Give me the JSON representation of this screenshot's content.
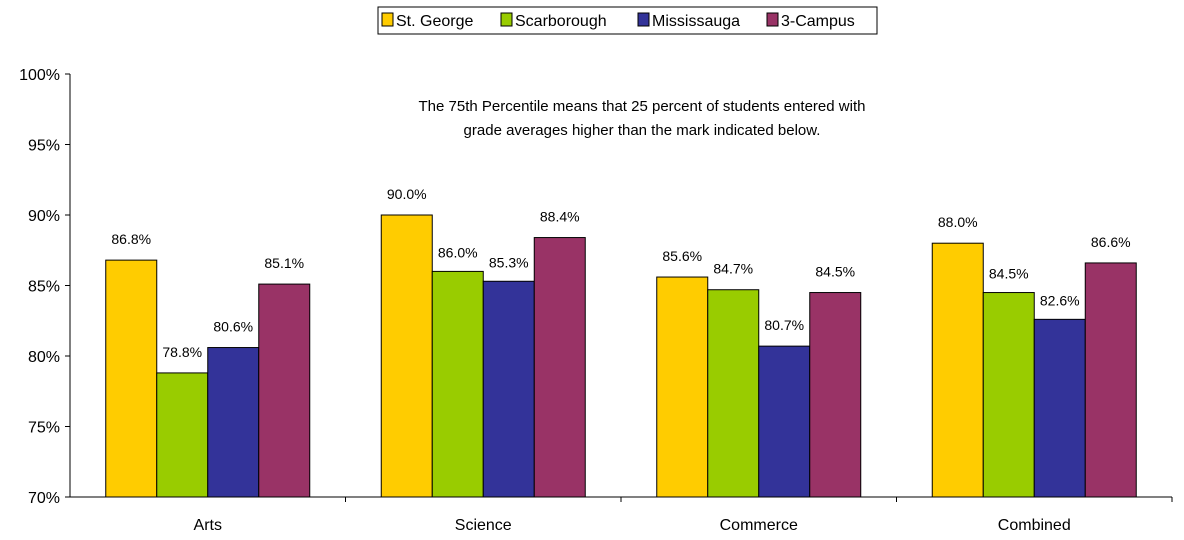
{
  "chart_data": {
    "type": "bar",
    "title": "",
    "xlabel": "",
    "ylabel": "",
    "ylim": [
      70,
      100
    ],
    "yticks": [
      "70%",
      "75%",
      "80%",
      "85%",
      "90%",
      "95%",
      "100%"
    ],
    "categories": [
      "Arts",
      "Science",
      "Commerce",
      "Combined"
    ],
    "series": [
      {
        "name": "St. George",
        "color": "#ffcc00",
        "values": [
          86.8,
          90.0,
          85.6,
          88.0
        ],
        "labels": [
          "86.8%",
          "90.0%",
          "85.6%",
          "88.0%"
        ]
      },
      {
        "name": "Scarborough",
        "color": "#99cc00",
        "values": [
          78.8,
          86.0,
          84.7,
          84.5
        ],
        "labels": [
          "78.8%",
          "86.0%",
          "84.7%",
          "84.5%"
        ]
      },
      {
        "name": "Mississauga",
        "color": "#333399",
        "values": [
          80.6,
          85.3,
          80.7,
          82.6
        ],
        "labels": [
          "80.6%",
          "85.3%",
          "80.7%",
          "82.6%"
        ]
      },
      {
        "name": "3-Campus",
        "color": "#993366",
        "values": [
          85.1,
          88.4,
          84.5,
          86.6
        ],
        "labels": [
          "85.1%",
          "88.4%",
          "84.5%",
          "86.6%"
        ]
      }
    ],
    "annotation": [
      "The 75th Percentile means that 25 percent of students entered with",
      "grade averages higher than the mark indicated below."
    ],
    "legend_position": "top",
    "grid": false
  }
}
